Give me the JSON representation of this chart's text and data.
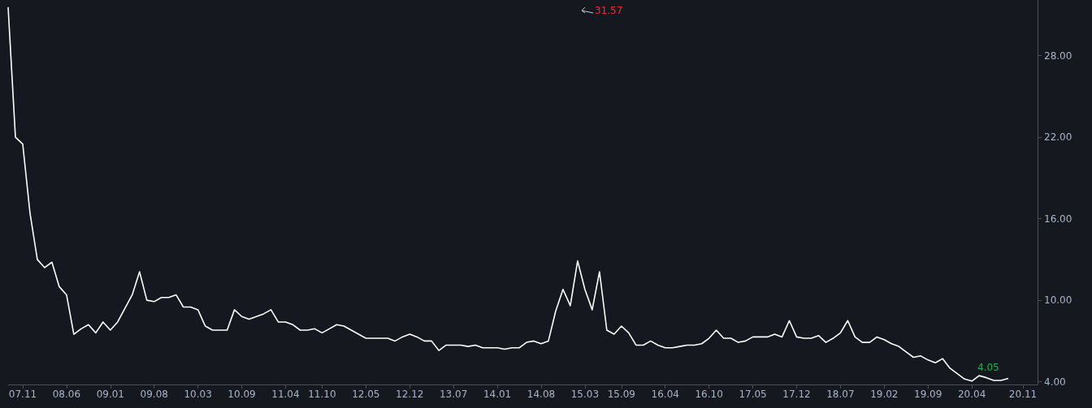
{
  "chart_data": {
    "type": "line",
    "categories": [
      null,
      null,
      "07.11",
      null,
      null,
      null,
      null,
      null,
      "08.06",
      null,
      null,
      null,
      null,
      null,
      "09.01",
      null,
      null,
      null,
      null,
      null,
      "09.08",
      null,
      null,
      null,
      null,
      null,
      "10.03",
      null,
      null,
      null,
      null,
      null,
      "10.09",
      null,
      null,
      null,
      null,
      null,
      "11.04",
      null,
      null,
      null,
      null,
      "11.10",
      null,
      null,
      null,
      null,
      null,
      "12.05",
      null,
      null,
      null,
      null,
      null,
      "12.12",
      null,
      null,
      null,
      null,
      null,
      "13.07",
      null,
      null,
      null,
      null,
      null,
      "14.01",
      null,
      null,
      null,
      null,
      null,
      "14.08",
      null,
      null,
      null,
      null,
      null,
      "15.03",
      null,
      null,
      null,
      null,
      "15.09",
      null,
      null,
      null,
      null,
      null,
      "16.04",
      null,
      null,
      null,
      null,
      null,
      "16.10",
      null,
      null,
      null,
      null,
      null,
      "17.05",
      null,
      null,
      null,
      null,
      null,
      "17.12",
      null,
      null,
      null,
      null,
      null,
      "18.07",
      null,
      null,
      null,
      null,
      null,
      "19.02",
      null,
      null,
      null,
      null,
      null,
      "19.09",
      null,
      null,
      null,
      null,
      null,
      "20.04",
      null,
      null,
      null,
      null,
      null,
      null,
      "20.11",
      null,
      null
    ],
    "values": [
      31.57,
      22.0,
      21.5,
      16.4,
      13.0,
      12.4,
      12.8,
      11.0,
      10.4,
      7.5,
      7.9,
      8.2,
      7.6,
      8.4,
      7.8,
      8.4,
      9.4,
      10.4,
      12.1,
      10.0,
      9.9,
      10.2,
      10.2,
      10.4,
      9.5,
      9.5,
      9.3,
      8.1,
      7.8,
      7.8,
      7.8,
      9.3,
      8.8,
      8.6,
      8.8,
      9.0,
      9.3,
      8.4,
      8.4,
      8.2,
      7.8,
      7.8,
      7.9,
      7.6,
      7.9,
      8.2,
      8.1,
      7.8,
      7.5,
      7.2,
      7.2,
      7.2,
      7.2,
      7.0,
      7.3,
      7.5,
      7.3,
      7.0,
      7.0,
      6.3,
      6.7,
      6.7,
      6.7,
      6.6,
      6.7,
      6.5,
      6.5,
      6.5,
      6.4,
      6.5,
      6.5,
      6.9,
      7.0,
      6.8,
      7.0,
      9.2,
      10.8,
      9.6,
      12.9,
      10.8,
      9.3,
      12.1,
      7.8,
      7.5,
      8.1,
      7.6,
      6.7,
      6.7,
      7.0,
      6.7,
      6.5,
      6.5,
      6.6,
      6.7,
      6.7,
      6.8,
      7.2,
      7.8,
      7.2,
      7.2,
      6.9,
      7.0,
      7.3,
      7.3,
      7.3,
      7.5,
      7.3,
      8.5,
      7.3,
      7.2,
      7.2,
      7.4,
      6.9,
      7.2,
      7.6,
      8.5,
      7.3,
      6.9,
      6.9,
      7.3,
      7.1,
      6.8,
      6.6,
      6.2,
      5.8,
      5.9,
      5.6,
      5.4,
      5.7,
      5.0,
      4.6,
      4.2,
      4.05,
      4.45,
      4.3,
      4.1,
      4.1,
      4.25,
      null,
      null,
      null,
      null
    ],
    "color": "#ffffff",
    "ylim": [
      3.8,
      32.1
    ],
    "yticks": [
      {
        "value": 4,
        "label": "4.00"
      },
      {
        "value": 10,
        "label": "10.00"
      },
      {
        "value": 16,
        "label": "16.00"
      },
      {
        "value": 22,
        "label": "22.00"
      },
      {
        "value": 28,
        "label": "28.00"
      }
    ],
    "annotations": [
      "31.57",
      "4.05"
    ]
  }
}
